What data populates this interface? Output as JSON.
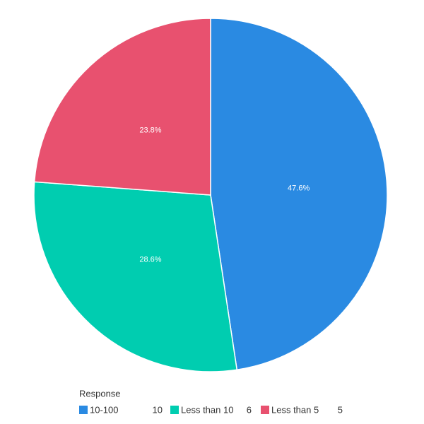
{
  "chart_data": {
    "type": "pie",
    "categories": [
      "10-100",
      "Less than 10",
      "Less than 5"
    ],
    "values": [
      10,
      6,
      5
    ],
    "value_labels": [
      "47.6%",
      "28.6%",
      "23.8%"
    ],
    "colors": [
      "#2a8ae2",
      "#00cdb0",
      "#e8516f"
    ],
    "legend_title": "Response"
  }
}
